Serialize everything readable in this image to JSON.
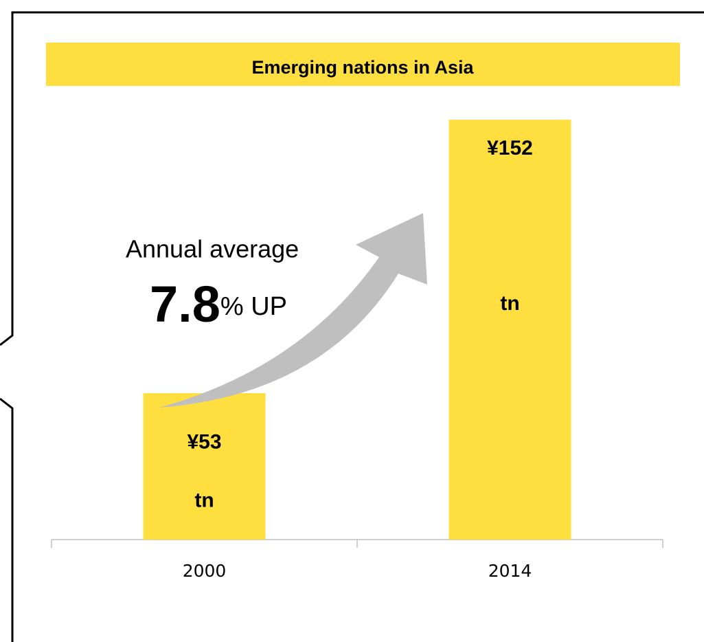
{
  "chart_data": {
    "type": "bar",
    "title": "Emerging nations in Asia",
    "categories": [
      "2000",
      "2014"
    ],
    "values": [
      53,
      152
    ],
    "value_labels": [
      [
        "¥53",
        "tn"
      ],
      [
        "¥152",
        "tn"
      ]
    ],
    "color": "#ffdf3f",
    "ylim": [
      0,
      160
    ],
    "annotation": {
      "line1": "Annual average",
      "value": "7.8",
      "suffix": "% UP"
    }
  }
}
